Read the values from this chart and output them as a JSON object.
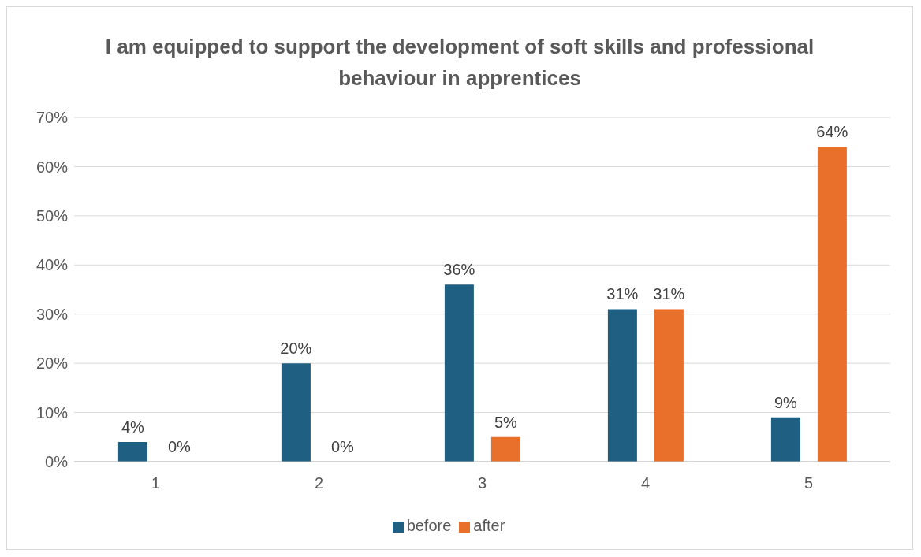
{
  "chart_data": {
    "type": "bar",
    "title": "I am equipped to support the development of soft skills and professional behaviour in apprentices",
    "categories": [
      "1",
      "2",
      "3",
      "4",
      "5"
    ],
    "series": [
      {
        "name": "before",
        "color": "#1f5f82",
        "values": [
          4,
          20,
          36,
          31,
          9
        ],
        "value_labels": [
          "4%",
          "20%",
          "36%",
          "31%",
          "9%"
        ]
      },
      {
        "name": "after",
        "color": "#e8702a",
        "values": [
          0,
          0,
          5,
          31,
          64
        ],
        "value_labels": [
          "0%",
          "0%",
          "5%",
          "31%",
          "64%"
        ]
      }
    ],
    "ylim": [
      0,
      70
    ],
    "yticks": [
      {
        "value": 0,
        "label": "0%"
      },
      {
        "value": 10,
        "label": "10%"
      },
      {
        "value": 20,
        "label": "20%"
      },
      {
        "value": 30,
        "label": "30%"
      },
      {
        "value": 40,
        "label": "40%"
      },
      {
        "value": 50,
        "label": "50%"
      },
      {
        "value": 60,
        "label": "60%"
      },
      {
        "value": 70,
        "label": "70%"
      }
    ],
    "grid": "y",
    "legend": "bottom"
  }
}
